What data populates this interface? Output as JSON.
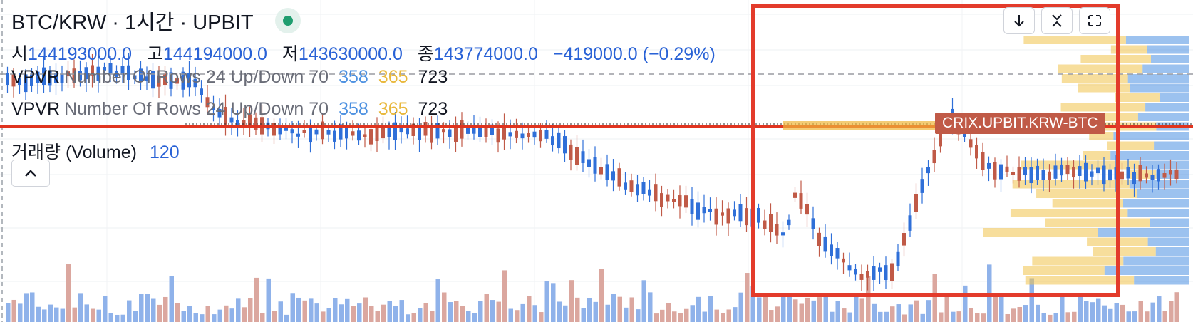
{
  "header": {
    "symbol_title": "BTC/KRW · 1시간 · UPBIT",
    "status_icon": "market-open-dot-icon"
  },
  "ohlc": {
    "open_label": "시",
    "open": "144193000.0",
    "high_label": "고",
    "high": "144194000.0",
    "low_label": "저",
    "low": "143630000.0",
    "close_label": "종",
    "close": "143774000.0",
    "change": "−419000.0 (−0.29%)"
  },
  "indicators": [
    {
      "name": "VPVR",
      "params": "Number Of Rows 24 Up/Down 70",
      "up": "358",
      "down": "365",
      "total": "723"
    },
    {
      "name": "VPVR",
      "params": "Number Of Rows 24 Up/Down 70",
      "up": "358",
      "down": "365",
      "total": "723"
    }
  ],
  "volume": {
    "label": "거래량 (Volume)",
    "value": "120"
  },
  "toolbar": {
    "collapse_icon": "chevron-up-icon",
    "download_icon": "arrow-down-icon",
    "compress_icon": "collapse-arrows-icon",
    "fullscreen_icon": "fullscreen-icon"
  },
  "symbol_tag": "CRIX.UPBIT.KRW-BTC",
  "colors": {
    "up": "#c05a47",
    "down": "#2f6fd8",
    "volume_up": "#dba79f",
    "volume_down": "#8fb2ea",
    "vp_up": "#4a90e2",
    "vp_down": "#f0c24b",
    "highlight": "#e33b2b",
    "price_line": "#e0341f"
  }
}
